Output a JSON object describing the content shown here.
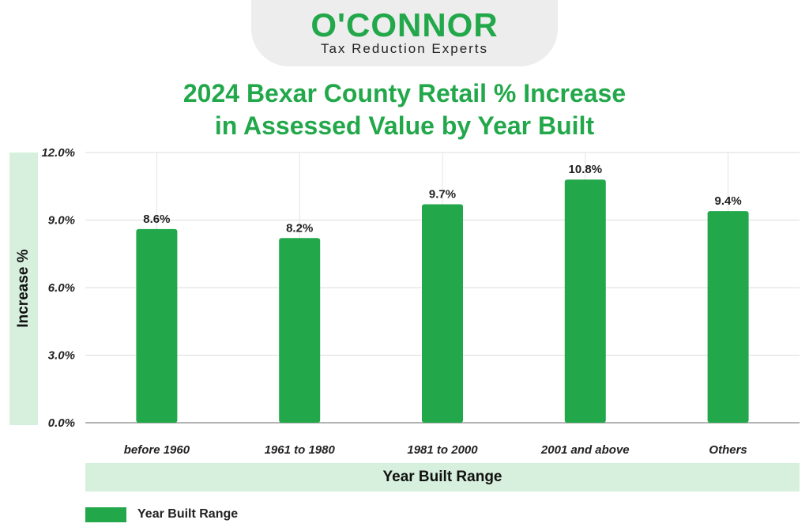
{
  "logo": {
    "brand": "O'CONNOR",
    "tagline": "Tax Reduction Experts"
  },
  "colors": {
    "brand_green": "#22a84a",
    "band_green": "#d7f0dd"
  },
  "chart_data": {
    "type": "bar",
    "title_lines": [
      "2024 Bexar County Retail % Increase",
      "in Assessed Value by Year Built"
    ],
    "categories": [
      "before 1960",
      "1961 to 1980",
      "1981 to 2000",
      "2001 and above",
      "Others"
    ],
    "values": [
      8.6,
      8.2,
      9.7,
      10.8,
      9.4
    ],
    "value_labels": [
      "8.6%",
      "8.2%",
      "9.7%",
      "10.8%",
      "9.4%"
    ],
    "xlabel": "Year Built Range",
    "ylabel": "Increase %",
    "ylim": [
      0,
      12
    ],
    "yticks": [
      0,
      3,
      6,
      9,
      12
    ],
    "ytick_labels": [
      "0.0%",
      "3.0%",
      "6.0%",
      "9.0%",
      "12.0%"
    ],
    "grid": true,
    "legend": {
      "label": "Year Built Range",
      "position": "bottom-left"
    }
  }
}
